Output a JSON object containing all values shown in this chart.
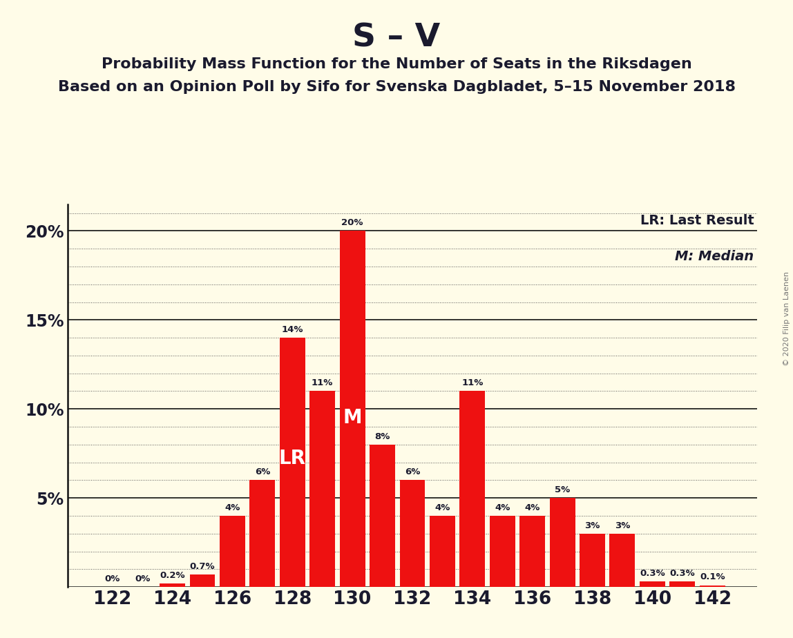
{
  "title": "S – V",
  "subtitle1": "Probability Mass Function for the Number of Seats in the Riksdagen",
  "subtitle2": "Based on an Opinion Poll by Sifo for Svenska Dagbladet, 5–15 November 2018",
  "copyright": "© 2020 Filip van Laenen",
  "legend_lr": "LR: Last Result",
  "legend_m": "M: Median",
  "seats": [
    122,
    123,
    124,
    125,
    126,
    127,
    128,
    129,
    130,
    131,
    132,
    133,
    134,
    135,
    136,
    137,
    138,
    139,
    140,
    141,
    142
  ],
  "values": [
    0.0,
    0.0,
    0.2,
    0.7,
    4.0,
    6.0,
    14.0,
    11.0,
    20.0,
    8.0,
    6.0,
    4.0,
    11.0,
    4.0,
    4.0,
    5.0,
    3.0,
    3.0,
    0.3,
    0.3,
    0.1
  ],
  "labels": [
    "0%",
    "0%",
    "0.2%",
    "0.7%",
    "4%",
    "6%",
    "14%",
    "11%",
    "20%",
    "8%",
    "6%",
    "4%",
    "11%",
    "4%",
    "4%",
    "5%",
    "3%",
    "3%",
    "0.3%",
    "0.3%",
    "0.1%"
  ],
  "show_label": [
    true,
    true,
    true,
    true,
    true,
    true,
    true,
    true,
    true,
    true,
    true,
    true,
    true,
    true,
    true,
    true,
    true,
    true,
    true,
    true,
    true
  ],
  "last_result_seat": 128,
  "median_seat": 130,
  "bar_color": "#ee1111",
  "background_color": "#fffce8",
  "title_fontsize": 34,
  "subtitle_fontsize": 16,
  "ylim": [
    0,
    21.5
  ],
  "yticks": [
    0,
    5,
    10,
    15,
    20
  ],
  "ytick_labels": [
    "",
    "5%",
    "10%",
    "15%",
    "20%"
  ],
  "xtick_labels": [
    "122",
    "124",
    "126",
    "128",
    "130",
    "132",
    "134",
    "136",
    "138",
    "140",
    "142"
  ],
  "xtick_positions": [
    122,
    124,
    126,
    128,
    130,
    132,
    134,
    136,
    138,
    140,
    142
  ]
}
